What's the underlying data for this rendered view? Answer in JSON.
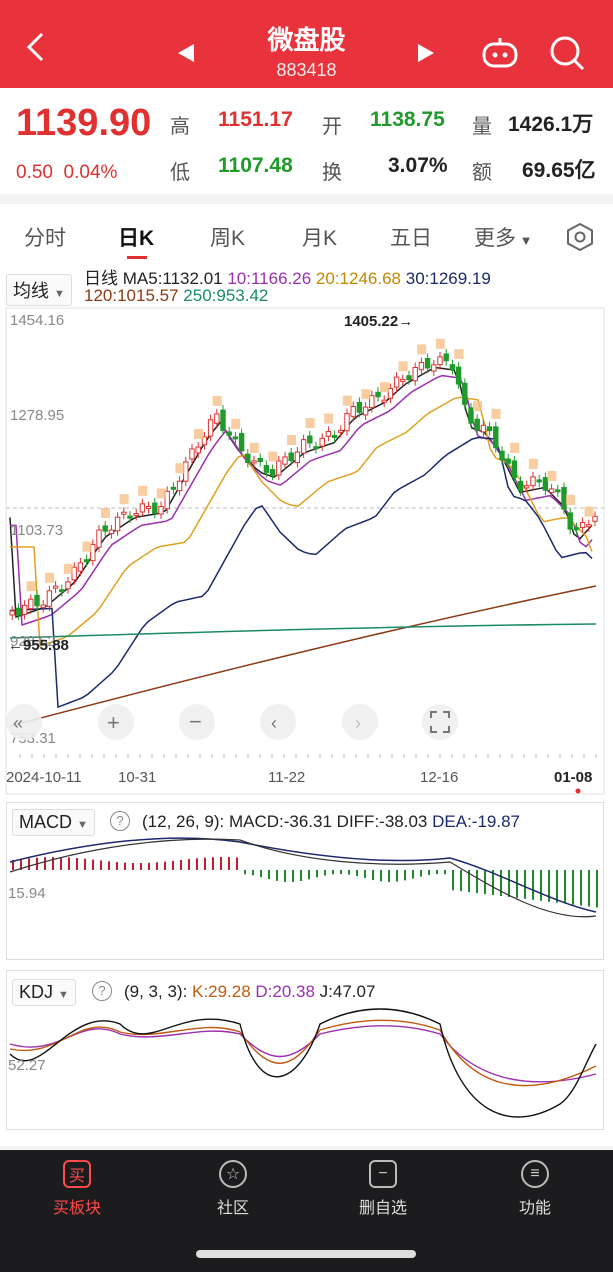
{
  "header": {
    "title": "微盘股",
    "code": "883418"
  },
  "quote": {
    "price": "1139.90",
    "change": "0.50",
    "change_pct": "0.04%",
    "high_label": "高",
    "high": "1151.17",
    "open_label": "开",
    "open": "1138.75",
    "volume_label": "量",
    "volume": "1426.1万",
    "low_label": "低",
    "low": "1107.48",
    "turnover_label": "换",
    "turnover": "3.07%",
    "amount_label": "额",
    "amount": "69.65亿"
  },
  "tabs": [
    "分时",
    "日K",
    "周K",
    "月K",
    "五日",
    "更多"
  ],
  "ma": {
    "selector": "均线",
    "line": "日线",
    "ma5": "MA5:1132.01",
    "ma10": "10:1166.26",
    "ma20": "20:1246.68",
    "ma30": "30:1269.19",
    "ma120": "120:1015.57",
    "ma250": "250:953.42"
  },
  "kline": {
    "y_labels": [
      "1454.16",
      "1278.95",
      "1103.73",
      "928.52",
      "753.31"
    ],
    "max_label": "1405.22→",
    "min_label": "←955.88",
    "x_labels": [
      "2024-10-11",
      "10-31",
      "11-22",
      "12-16",
      "01-08"
    ]
  },
  "macd": {
    "selector": "MACD",
    "params": "(12, 26, 9):",
    "macd": "MACD:-36.31",
    "diff": "DIFF:-38.03",
    "dea": "DEA:-19.87",
    "axis_label": "15.94"
  },
  "kdj": {
    "selector": "KDJ",
    "params": "(9, 3, 3):",
    "k": "K:29.28",
    "d": "D:20.38",
    "j": "J:47.07",
    "axis_label": "52.27"
  },
  "nav": [
    {
      "label": "买板块",
      "icon": "买"
    },
    {
      "label": "社区",
      "icon": "☆"
    },
    {
      "label": "删自选",
      "icon": "−"
    },
    {
      "label": "功能",
      "icon": "≡"
    }
  ],
  "colors": {
    "up": "#e03030",
    "down": "#1f9a2b",
    "header": "#e8333c"
  }
}
